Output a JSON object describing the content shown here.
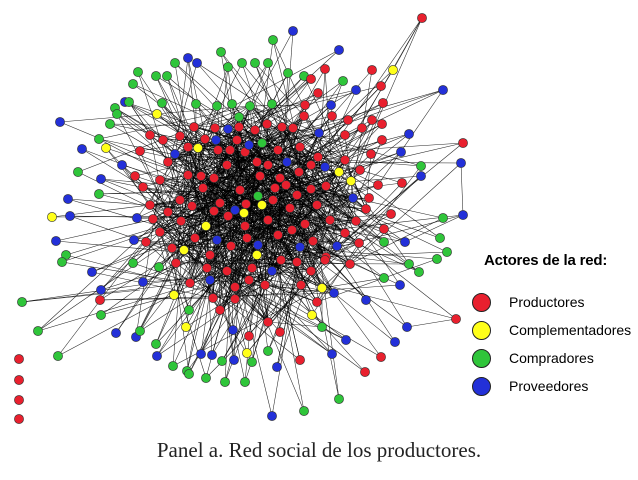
{
  "caption": "Panel a. Red social de los productores.",
  "legend": {
    "title": "Actores de la red:",
    "items": [
      {
        "label": "Productores",
        "color": "#e8202e"
      },
      {
        "label": "Complementadores",
        "color": "#ffff1a"
      },
      {
        "label": "Compradores",
        "color": "#2fc53a"
      },
      {
        "label": "Proveedores",
        "color": "#2330d8"
      }
    ]
  },
  "colors": {
    "edge": "#000000",
    "node_outline": "#333333"
  }
}
